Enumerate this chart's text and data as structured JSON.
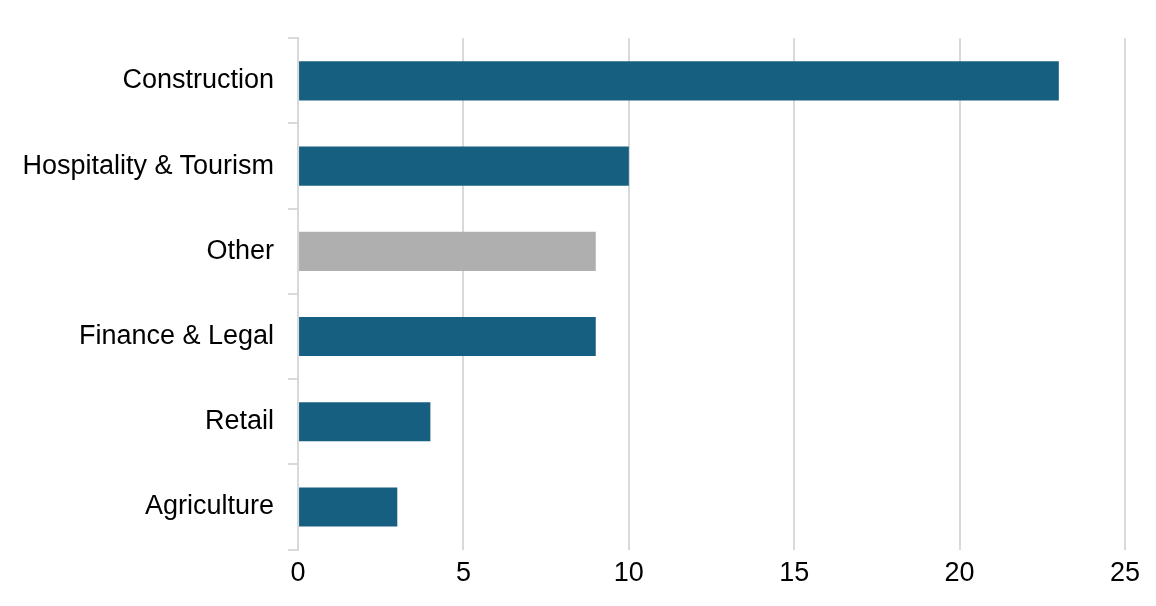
{
  "chart_data": {
    "type": "bar",
    "orientation": "horizontal",
    "categories": [
      "Construction",
      "Hospitality & Tourism",
      "Other",
      "Finance & Legal",
      "Retail",
      "Agriculture"
    ],
    "values": [
      23,
      10,
      9,
      9,
      4,
      3
    ],
    "colors": [
      "#175f80",
      "#175f80",
      "#afafaf",
      "#175f80",
      "#175f80",
      "#175f80"
    ],
    "xlim": [
      0,
      25
    ],
    "xticks": [
      0,
      5,
      10,
      15,
      20,
      25
    ],
    "grid": "x",
    "legend": false
  }
}
